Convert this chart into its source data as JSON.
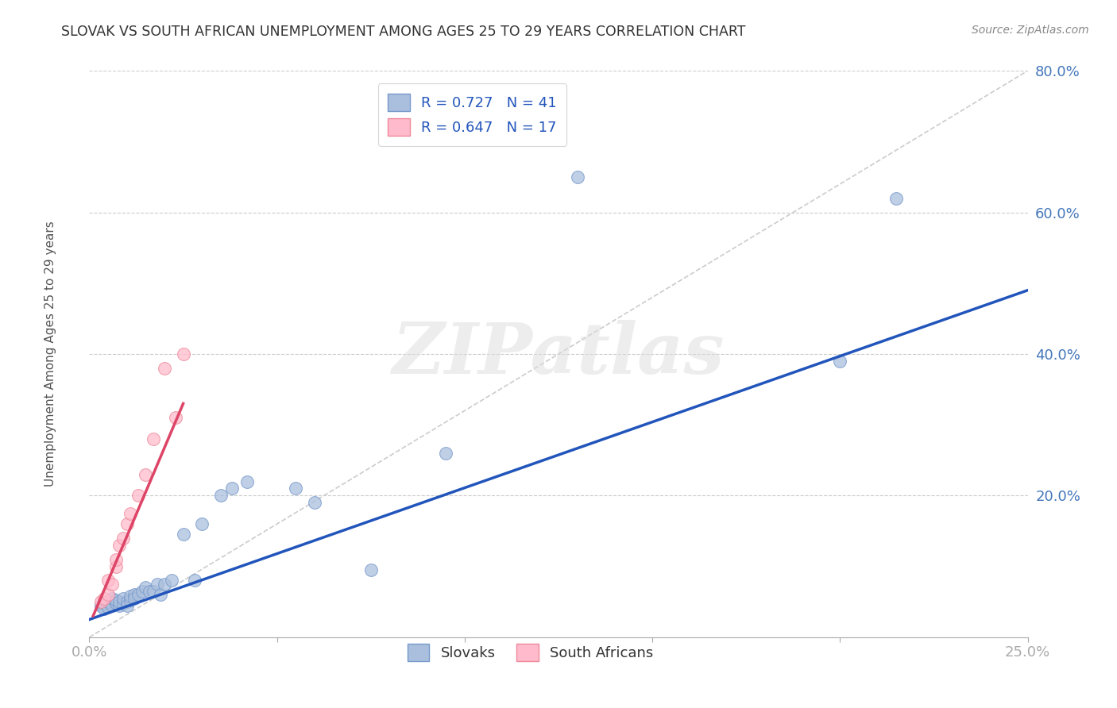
{
  "title": "SLOVAK VS SOUTH AFRICAN UNEMPLOYMENT AMONG AGES 25 TO 29 YEARS CORRELATION CHART",
  "source": "Source: ZipAtlas.com",
  "ylabel": "Unemployment Among Ages 25 to 29 years",
  "xlim": [
    0.0,
    0.25
  ],
  "ylim": [
    0.0,
    0.8
  ],
  "xticks": [
    0.0,
    0.05,
    0.1,
    0.15,
    0.2,
    0.25
  ],
  "xticklabels": [
    "0.0%",
    "",
    "",
    "",
    "",
    "25.0%"
  ],
  "yticks": [
    0.0,
    0.2,
    0.4,
    0.6,
    0.8
  ],
  "yticklabels": [
    "",
    "20.0%",
    "40.0%",
    "60.0%",
    "80.0%"
  ],
  "legend_r1_text": "R = 0.727   N = 41",
  "legend_r2_text": "R = 0.647   N = 17",
  "legend_label1": "Slovaks",
  "legend_label2": "South Africans",
  "blue_fill": "#AABFDD",
  "blue_edge": "#7799CC",
  "pink_fill": "#FFBBCC",
  "pink_edge": "#EE8899",
  "blue_line_color": "#2255BB",
  "pink_line_color": "#DD4466",
  "ref_line_color": "#CCCCCC",
  "title_color": "#333333",
  "axis_tick_color": "#4477BB",
  "watermark": "ZIPatlas",
  "watermark_color": "#DDDDDD",
  "blue_scatter_x": [
    0.003,
    0.004,
    0.004,
    0.005,
    0.005,
    0.006,
    0.006,
    0.007,
    0.007,
    0.008,
    0.008,
    0.009,
    0.009,
    0.01,
    0.01,
    0.011,
    0.011,
    0.012,
    0.012,
    0.013,
    0.014,
    0.015,
    0.016,
    0.017,
    0.018,
    0.019,
    0.02,
    0.022,
    0.025,
    0.028,
    0.03,
    0.035,
    0.038,
    0.042,
    0.055,
    0.06,
    0.075,
    0.095,
    0.13,
    0.2,
    0.215
  ],
  "blue_scatter_y": [
    0.045,
    0.04,
    0.048,
    0.042,
    0.05,
    0.045,
    0.055,
    0.048,
    0.052,
    0.045,
    0.05,
    0.048,
    0.055,
    0.05,
    0.045,
    0.052,
    0.058,
    0.06,
    0.055,
    0.06,
    0.065,
    0.07,
    0.065,
    0.065,
    0.075,
    0.06,
    0.075,
    0.08,
    0.145,
    0.08,
    0.16,
    0.2,
    0.21,
    0.22,
    0.21,
    0.19,
    0.095,
    0.26,
    0.65,
    0.39,
    0.62
  ],
  "pink_scatter_x": [
    0.003,
    0.004,
    0.005,
    0.005,
    0.006,
    0.007,
    0.007,
    0.008,
    0.009,
    0.01,
    0.011,
    0.013,
    0.015,
    0.017,
    0.02,
    0.023,
    0.025
  ],
  "pink_scatter_y": [
    0.05,
    0.055,
    0.06,
    0.08,
    0.075,
    0.1,
    0.11,
    0.13,
    0.14,
    0.16,
    0.175,
    0.2,
    0.23,
    0.28,
    0.38,
    0.31,
    0.4
  ],
  "blue_line_x": [
    0.0,
    0.25
  ],
  "blue_line_y": [
    0.025,
    0.49
  ],
  "pink_line_x": [
    0.001,
    0.025
  ],
  "pink_line_y": [
    0.03,
    0.33
  ],
  "ref_line_x": [
    0.0,
    0.25
  ],
  "ref_line_y": [
    0.0,
    0.8
  ]
}
